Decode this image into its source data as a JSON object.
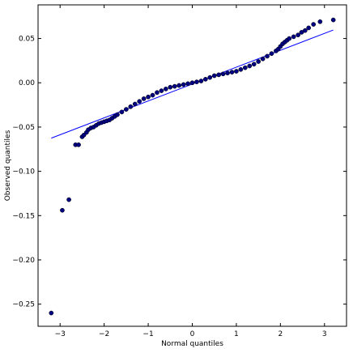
{
  "chart_data": {
    "type": "scatter",
    "title": "",
    "xlabel": "Normal quantiles",
    "ylabel": "Observed quantiles",
    "xlim": [
      -3.5,
      3.5
    ],
    "ylim": [
      -0.275,
      0.088
    ],
    "xticks": [
      -3,
      -2,
      -1,
      0,
      1,
      2,
      3
    ],
    "xtick_labels": [
      "−3",
      "−2",
      "−1",
      "0",
      "1",
      "2",
      "3"
    ],
    "yticks": [
      -0.25,
      -0.2,
      -0.15,
      -0.1,
      -0.05,
      0.0,
      0.05
    ],
    "ytick_labels": [
      "−0.25",
      "−0.20",
      "−0.15",
      "−0.10",
      "−0.05",
      "0.00",
      "0.05"
    ],
    "grid": false,
    "legend": "none",
    "marker_color": "#000080",
    "line_color": "#0000ff",
    "reference_line": {
      "x": [
        -3.2,
        3.2
      ],
      "y": [
        -0.0625,
        0.0596
      ]
    },
    "points": {
      "x": [
        -3.2,
        -2.95,
        -2.8,
        -2.65,
        -2.58,
        -2.5,
        -2.46,
        -2.4,
        -2.36,
        -2.3,
        -2.24,
        -2.18,
        -2.12,
        -2.06,
        -2.0,
        -1.94,
        -1.88,
        -1.82,
        -1.76,
        -1.7,
        -1.6,
        -1.5,
        -1.4,
        -1.3,
        -1.2,
        -1.1,
        -1.0,
        -0.9,
        -0.8,
        -0.7,
        -0.6,
        -0.5,
        -0.4,
        -0.3,
        -0.2,
        -0.1,
        0.0,
        0.1,
        0.2,
        0.3,
        0.4,
        0.5,
        0.6,
        0.7,
        0.8,
        0.9,
        1.0,
        1.1,
        1.2,
        1.3,
        1.4,
        1.5,
        1.6,
        1.7,
        1.8,
        1.9,
        1.95,
        2.0,
        2.05,
        2.1,
        2.15,
        2.2,
        2.3,
        2.4,
        2.48,
        2.56,
        2.64,
        2.75,
        2.9,
        3.2
      ],
      "y": [
        -0.26,
        -0.144,
        -0.132,
        -0.07,
        -0.07,
        -0.061,
        -0.059,
        -0.056,
        -0.053,
        -0.051,
        -0.05,
        -0.048,
        -0.046,
        -0.045,
        -0.044,
        -0.043,
        -0.042,
        -0.04,
        -0.038,
        -0.036,
        -0.033,
        -0.03,
        -0.027,
        -0.024,
        -0.021,
        -0.018,
        -0.016,
        -0.014,
        -0.011,
        -0.009,
        -0.007,
        -0.005,
        -0.004,
        -0.003,
        -0.002,
        -0.001,
        0.0,
        0.001,
        0.002,
        0.004,
        0.006,
        0.008,
        0.009,
        0.01,
        0.011,
        0.012,
        0.013,
        0.015,
        0.017,
        0.019,
        0.021,
        0.024,
        0.027,
        0.03,
        0.033,
        0.036,
        0.038,
        0.041,
        0.044,
        0.046,
        0.048,
        0.05,
        0.052,
        0.054,
        0.057,
        0.059,
        0.062,
        0.066,
        0.069,
        0.071
      ]
    }
  }
}
